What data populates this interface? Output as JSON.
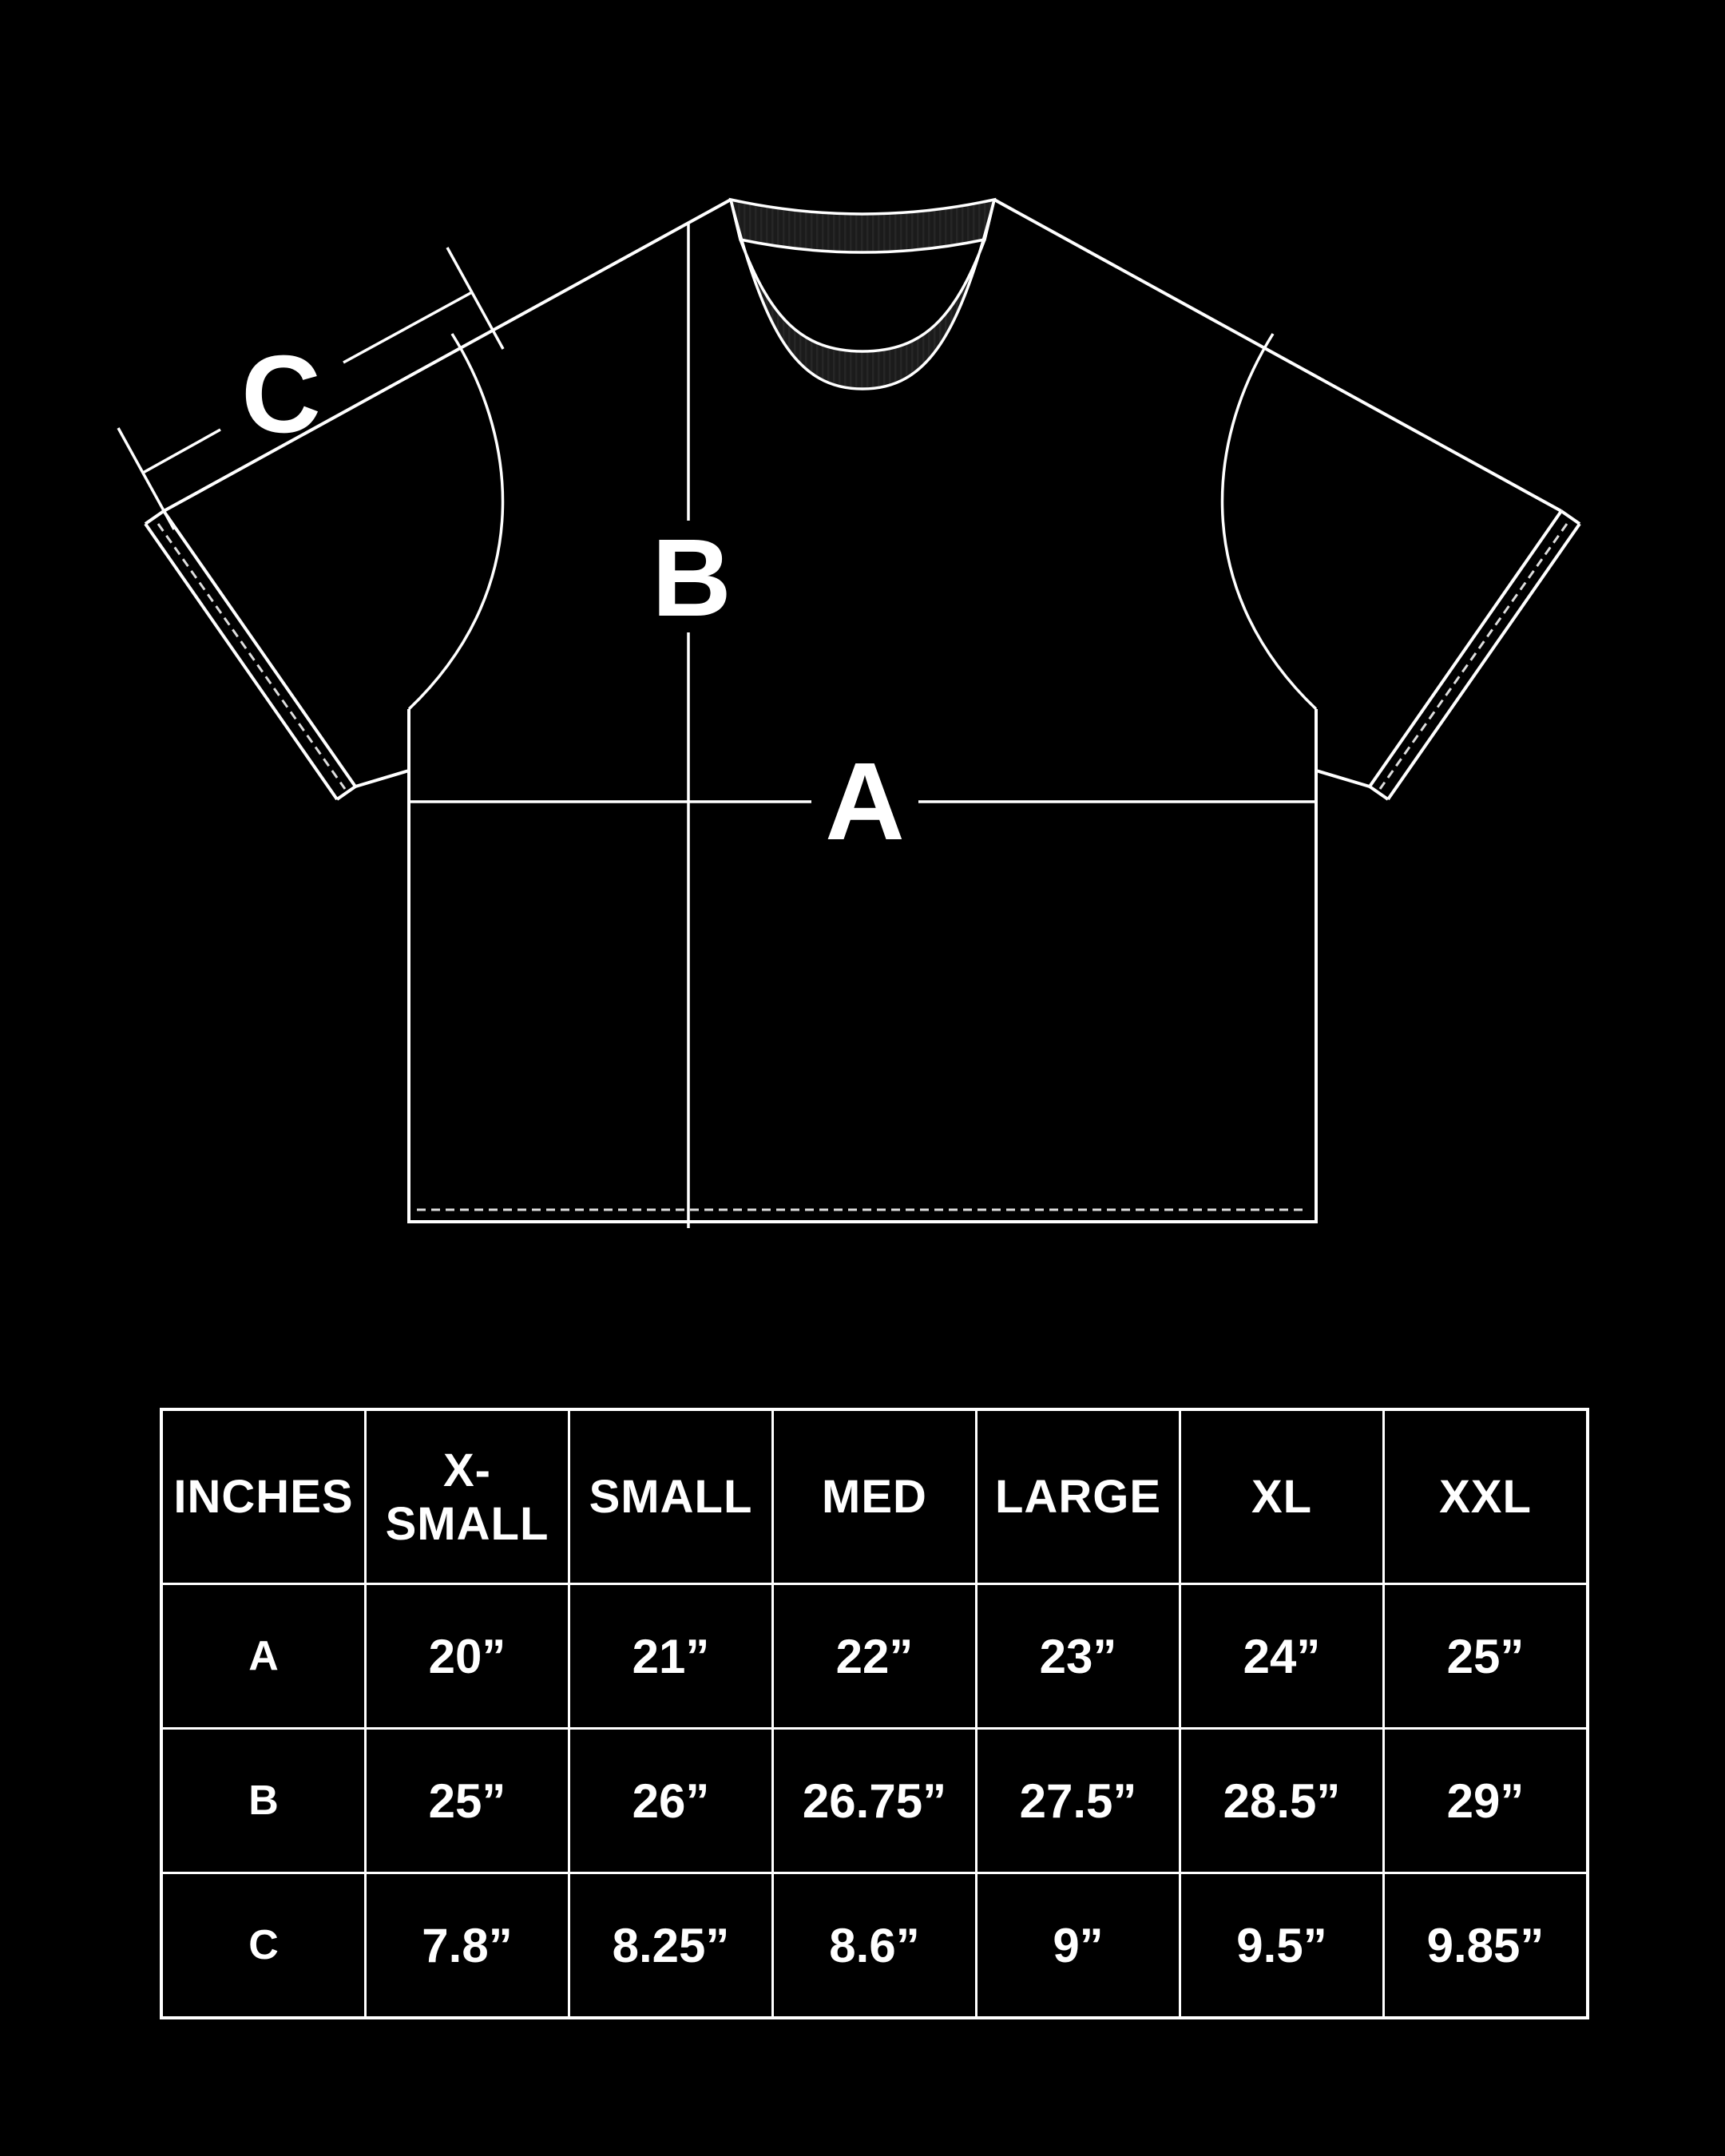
{
  "diagram": {
    "label_a": "A",
    "label_b": "B",
    "label_c": "C"
  },
  "size_table": {
    "unit_header": "INCHES",
    "headers": [
      "INCHES",
      "X-SMALL",
      "SMALL",
      "MED",
      "LARGE",
      "XL",
      "XXL"
    ],
    "rows": [
      {
        "label": "A",
        "values": [
          "20”",
          "21”",
          "22”",
          "23”",
          "24”",
          "25”"
        ]
      },
      {
        "label": "B",
        "values": [
          "25”",
          "26”",
          "26.75”",
          "27.5”",
          "28.5”",
          "29”"
        ]
      },
      {
        "label": "C",
        "values": [
          "7.8”",
          "8.25”",
          "8.6”",
          "9”",
          "9.5”",
          "9.85”"
        ]
      }
    ]
  },
  "colors": {
    "background": "#000000",
    "line": "#ffffff",
    "stitch": "#dddddd",
    "collar_fill": "#1b1b1b",
    "collar_rib": "#262626"
  }
}
